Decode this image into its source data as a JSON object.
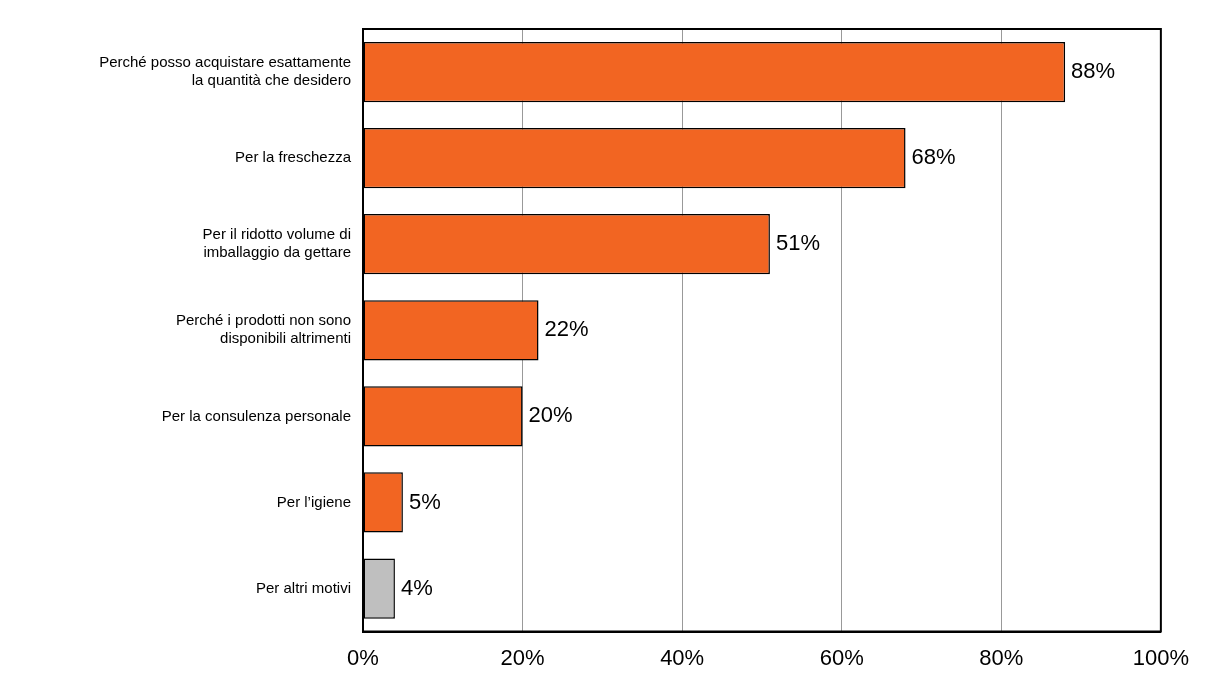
{
  "chart_data": {
    "type": "bar",
    "orientation": "horizontal",
    "categories": [
      "Perché posso acquistare esattamente la quantità che desidero",
      "Per la freschezza",
      "Per il ridotto volume di imballaggio da gettare",
      "Perché i prodotti non sono disponibili altrimenti",
      "Per la consulenza personale",
      "Per l’igiene",
      "Per altri motivi"
    ],
    "values": [
      88,
      68,
      51,
      22,
      20,
      5,
      4
    ],
    "colors": [
      "#f26522",
      "#f26522",
      "#f26522",
      "#f26522",
      "#f26522",
      "#f26522",
      "#bfbfbf"
    ],
    "value_labels": [
      "88%",
      "68%",
      "51%",
      "22%",
      "20%",
      "5%",
      "4%"
    ],
    "xlim": [
      0,
      100
    ],
    "xticks": [
      {
        "value": 0,
        "label": "0%"
      },
      {
        "value": 20,
        "label": "20%"
      },
      {
        "value": 40,
        "label": "40%"
      },
      {
        "value": 60,
        "label": "60%"
      },
      {
        "value": 80,
        "label": "80%"
      },
      {
        "value": 100,
        "label": "100%"
      }
    ],
    "grid": "x"
  }
}
